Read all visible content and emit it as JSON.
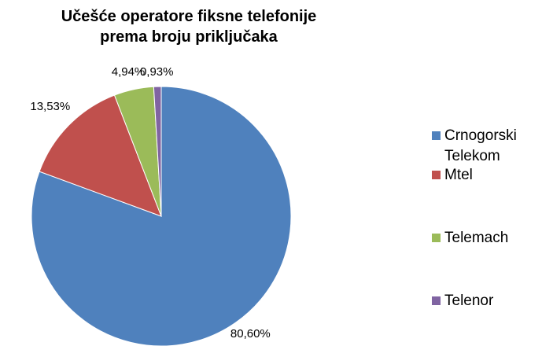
{
  "chart_data": {
    "type": "pie",
    "title": "Učešće operatore fiksne telefonije prema broju priključaka",
    "categories": [
      "Crnogorski Telekom",
      "Mtel",
      "Telemach",
      "Telenor"
    ],
    "values": [
      80.6,
      13.53,
      4.94,
      0.93
    ],
    "value_labels": [
      "80,60%",
      "13,53%",
      "4,94%",
      "0,93%"
    ],
    "colors": [
      "#4f81bd",
      "#c0504d",
      "#9bbb59",
      "#8064a2"
    ],
    "legend": "right"
  }
}
